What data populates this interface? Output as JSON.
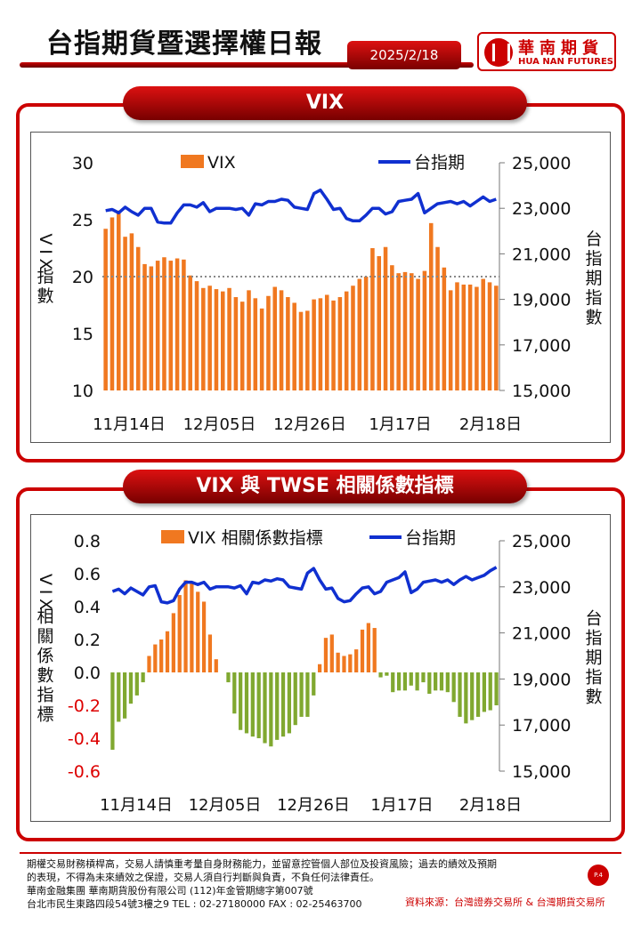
{
  "header": {
    "title": "台指期貨暨選擇權日報",
    "date": "2025/2/18",
    "logo_cn": "華南期貨",
    "logo_en": "HUA NAN FUTURES"
  },
  "panel1": {
    "tab": "VIX"
  },
  "panel2": {
    "tab": "VIX 與 TWSE 相關係數指標"
  },
  "chart_data": [
    {
      "type": "bar",
      "series": [
        {
          "name": "VIX",
          "type": "bar",
          "axis": "left",
          "color": "#f07820",
          "values": [
            24.2,
            25.2,
            25.8,
            23.5,
            23.8,
            22.6,
            21.1,
            20.9,
            21.4,
            21.7,
            21.4,
            21.6,
            21.5,
            20.1,
            19.6,
            19.0,
            19.2,
            18.9,
            18.7,
            19.0,
            18.2,
            17.8,
            18.8,
            18.1,
            17.2,
            18.3,
            19.1,
            18.8,
            18.2,
            17.7,
            16.9,
            17.0,
            18.0,
            18.1,
            18.4,
            17.9,
            18.2,
            18.7,
            19.2,
            19.8,
            20.0,
            22.5,
            21.8,
            22.6,
            21.0,
            20.3,
            20.4,
            20.3,
            19.8,
            20.5,
            24.7,
            22.6,
            20.8,
            18.8,
            19.5,
            19.3,
            19.3,
            19.1,
            19.8,
            19.5,
            19.2
          ]
        },
        {
          "name": "台指期",
          "type": "line",
          "axis": "right",
          "color": "#1030d0",
          "values": [
            22900,
            22950,
            22800,
            23050,
            22850,
            22700,
            23000,
            23000,
            22400,
            22350,
            22350,
            22800,
            23150,
            23150,
            23050,
            23250,
            22850,
            23000,
            23000,
            23000,
            22950,
            23000,
            22700,
            23200,
            23150,
            23300,
            23300,
            23400,
            23350,
            23050,
            23000,
            22950,
            23650,
            23800,
            23400,
            22950,
            23000,
            22550,
            22450,
            22450,
            22700,
            23000,
            23000,
            22750,
            22850,
            23300,
            23350,
            23400,
            23650,
            22800,
            23000,
            23200,
            23250,
            23300,
            23200,
            23300,
            23100,
            23300,
            23500,
            23300,
            23400
          ]
        }
      ],
      "x_ticks": [
        "11月14日",
        "12月05日",
        "12月26日",
        "1月17日",
        "2月18日"
      ],
      "left_axis": {
        "label": "VIX指數",
        "min": 10,
        "max": 30,
        "ticks": [
          "10",
          "15",
          "20",
          "25",
          "30"
        ]
      },
      "right_axis": {
        "label": "台指期指數",
        "min": 15000,
        "max": 25000,
        "ticks": [
          "15,000",
          "17,000",
          "19,000",
          "21,000",
          "23,000",
          "25,000"
        ]
      },
      "reference_line": {
        "axis": "left",
        "value": 20,
        "style": "dotted"
      },
      "legend_position": "top"
    },
    {
      "type": "bar",
      "series": [
        {
          "name": "VIX 相關係數指標",
          "type": "bar",
          "axis": "left",
          "color_pos": "#f07820",
          "color_neg": "#80a830",
          "values": [
            -0.47,
            -0.3,
            -0.28,
            -0.19,
            -0.14,
            -0.06,
            0.1,
            0.17,
            0.2,
            0.25,
            0.36,
            0.47,
            0.56,
            0.54,
            0.49,
            0.43,
            0.23,
            0.08,
            0.0,
            -0.06,
            -0.25,
            -0.35,
            -0.37,
            -0.39,
            -0.4,
            -0.43,
            -0.45,
            -0.41,
            -0.39,
            -0.37,
            -0.32,
            -0.27,
            -0.27,
            -0.14,
            0.05,
            0.21,
            0.23,
            0.12,
            0.1,
            0.11,
            0.14,
            0.26,
            0.3,
            0.27,
            -0.03,
            -0.02,
            -0.12,
            -0.11,
            -0.11,
            -0.08,
            -0.11,
            -0.06,
            -0.13,
            -0.11,
            -0.11,
            -0.12,
            -0.18,
            -0.27,
            -0.31,
            -0.29,
            -0.27,
            -0.24,
            -0.23,
            -0.2
          ]
        },
        {
          "name": "台指期",
          "type": "line",
          "axis": "right",
          "color": "#1030d0",
          "values": [
            22800,
            22900,
            22700,
            22950,
            22800,
            22650,
            23000,
            23050,
            22350,
            22300,
            22400,
            22900,
            23200,
            23200,
            23100,
            23200,
            22900,
            23000,
            23000,
            23000,
            22950,
            23050,
            22700,
            23200,
            23150,
            23300,
            23250,
            23350,
            23300,
            23000,
            22950,
            22900,
            23600,
            23800,
            23300,
            22900,
            22950,
            22500,
            22350,
            22400,
            22700,
            22950,
            23000,
            22700,
            22800,
            23200,
            23300,
            23400,
            23650,
            22750,
            22900,
            23200,
            23250,
            23300,
            23200,
            23300,
            23100,
            23300,
            23450,
            23300,
            23400,
            23500,
            23700,
            23850
          ]
        }
      ],
      "x_ticks": [
        "11月14日",
        "12月05日",
        "12月26日",
        "1月17日",
        "2月18日"
      ],
      "left_axis": {
        "label": "VIX相關係數指標",
        "min": -0.6,
        "max": 0.8,
        "ticks": [
          "-0.6",
          "-0.4",
          "-0.2",
          "0.0",
          "0.2",
          "0.4",
          "0.6",
          "0.8"
        ]
      },
      "right_axis": {
        "label": "台指期指數",
        "min": 15000,
        "max": 25000,
        "ticks": [
          "15,000",
          "17,000",
          "19,000",
          "21,000",
          "23,000",
          "25,000"
        ]
      },
      "legend_position": "top"
    }
  ],
  "footer": {
    "line1": "期權交易財務槓桿高，交易人請慎重考量自身財務能力，並留意控管個人部位及投資風險；過去的績效及預期",
    "line2": "的表現，不得為未來績效之保證，交易人須自行判斷與負責，不負任何法律責任。",
    "line3": "華南金融集團 華南期貨股份有限公司 (112)年金管期總字第007號",
    "line4": "台北市民生東路四段54號3樓之9  TEL : 02-27180000  FAX : 02-25463700",
    "page": "P.4",
    "source": "資料來源：台灣證券交易所 & 台灣期貨交易所"
  }
}
